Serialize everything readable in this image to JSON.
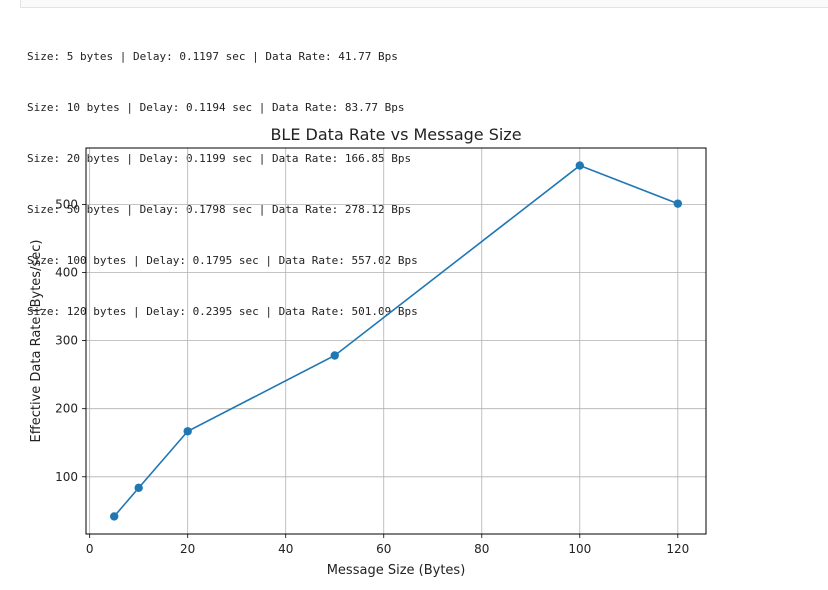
{
  "output_lines": [
    "Size: 5 bytes | Delay: 0.1197 sec | Data Rate: 41.77 Bps",
    "Size: 10 bytes | Delay: 0.1194 sec | Data Rate: 83.77 Bps",
    "Size: 20 bytes | Delay: 0.1199 sec | Data Rate: 166.85 Bps",
    "Size: 50 bytes | Delay: 0.1798 sec | Data Rate: 278.12 Bps",
    "Size: 100 bytes | Delay: 0.1795 sec | Data Rate: 557.02 Bps",
    "Size: 120 bytes | Delay: 0.2395 sec | Data Rate: 501.09 Bps"
  ],
  "chart_data": {
    "type": "line",
    "title": "BLE Data Rate vs Message Size",
    "xlabel": "Message Size (Bytes)",
    "ylabel": "Effective Data Rate (Bytes/sec)",
    "x": [
      5,
      10,
      20,
      50,
      100,
      120
    ],
    "y": [
      41.77,
      83.77,
      166.85,
      278.12,
      557.02,
      501.09
    ],
    "xlim": [
      -0.75,
      125.75
    ],
    "ylim": [
      15.99,
      582.8
    ],
    "xticks": [
      0,
      20,
      40,
      60,
      80,
      100,
      120
    ],
    "yticks": [
      100,
      200,
      300,
      400,
      500
    ],
    "grid": true,
    "marker": "circle",
    "color": "#1f77b4"
  }
}
